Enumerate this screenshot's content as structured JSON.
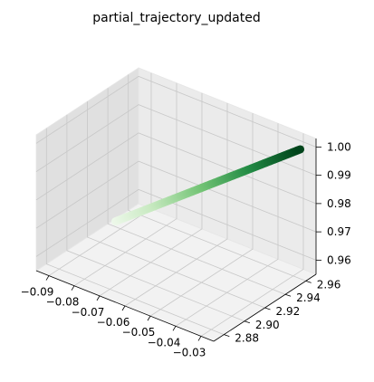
{
  "chart_data": {
    "type": "scatter",
    "projection": "3d",
    "title": "partial_trajectory_updated",
    "xlabel": "",
    "ylabel": "",
    "zlabel": "",
    "colormap": "Greens",
    "colormap_colors": [
      "#f7fcf5",
      "#c7e9c0",
      "#74c476",
      "#238b45",
      "#00441b"
    ],
    "grid": true,
    "x_ticks": [
      -0.09,
      -0.08,
      -0.07,
      -0.06,
      -0.05,
      -0.04,
      -0.03
    ],
    "x_tick_labels": [
      "−0.09",
      "−0.08",
      "−0.07",
      "−0.06",
      "−0.05",
      "−0.04",
      "−0.03"
    ],
    "y_ticks": [
      2.88,
      2.9,
      2.92,
      2.94,
      2.96
    ],
    "y_tick_labels": [
      "2.88",
      "2.90",
      "2.92",
      "2.94",
      "2.96"
    ],
    "z_ticks": [
      0.96,
      0.97,
      0.98,
      0.99,
      1.0
    ],
    "z_tick_labels": [
      "0.96",
      "0.97",
      "0.98",
      "0.99",
      "1.00"
    ],
    "xlim": [
      -0.095,
      -0.025
    ],
    "ylim": [
      2.87,
      2.97
    ],
    "zlim": [
      0.955,
      1.003
    ],
    "series": [
      {
        "start": {
          "x": -0.094,
          "y": 2.945,
          "z": 0.955
        },
        "end": {
          "x": -0.028,
          "y": 2.962,
          "z": 1.0
        },
        "num_points": 200
      }
    ]
  }
}
